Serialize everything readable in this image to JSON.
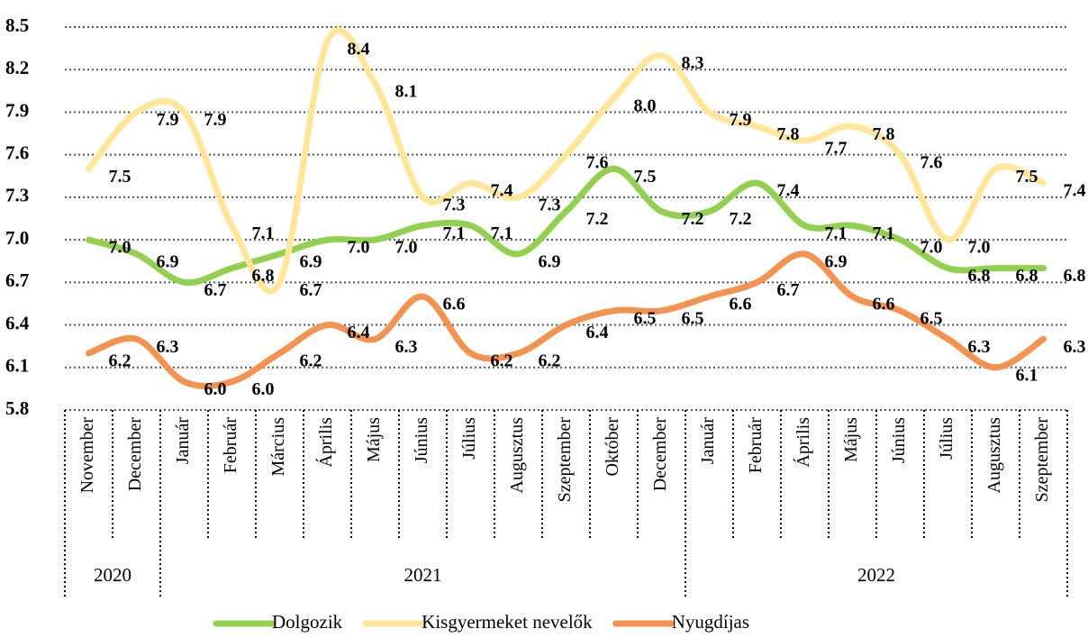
{
  "chart_data": {
    "type": "line",
    "categories": [
      "November",
      "December",
      "Január",
      "Február",
      "Március",
      "Április",
      "Május",
      "Június",
      "Július",
      "Augusztus",
      "Szeptember",
      "Október",
      "December",
      "Január",
      "Február",
      "Április",
      "Május",
      "Június",
      "Július",
      "Augusztus",
      "Szeptember"
    ],
    "groups": [
      {
        "label": "2020",
        "span": 2
      },
      {
        "label": "2021",
        "span": 11
      },
      {
        "label": "2022",
        "span": 8
      }
    ],
    "ylim": [
      5.8,
      8.5
    ],
    "yticks": [
      5.8,
      6.1,
      6.4,
      6.7,
      {
        "value": 7,
        "label": "7.0"
      },
      7.3,
      7.6,
      7.9,
      8.2,
      8.5
    ],
    "grid": true,
    "smooth": true,
    "legend": "bottom",
    "series": [
      {
        "name": "Dolgozik",
        "color": "#92d050",
        "values": [
          7,
          6.9,
          6.7,
          6.8,
          6.9,
          7,
          7,
          7.1,
          7.1,
          6.9,
          7.2,
          7.5,
          7.2,
          7.2,
          7.4,
          7.1,
          7.1,
          7,
          6.8,
          6.8,
          6.8
        ],
        "value_labels": [
          "7.0",
          "6.9",
          "6.7",
          "6.8",
          "6.9",
          "7.0",
          "7.0",
          "7.1",
          "7.1",
          "6.9",
          "7.2",
          "7.5",
          "7.2",
          "7.2",
          "7.4",
          "7.1",
          "7.1",
          "7.0",
          "6.8",
          "6.8",
          "6.8"
        ]
      },
      {
        "name": "Kisgyermeket nevelők",
        "color": "#ffe699",
        "values": [
          7.5,
          7.9,
          7.9,
          7.1,
          6.7,
          8.4,
          8.1,
          7.3,
          7.4,
          7.3,
          7.6,
          8,
          8.3,
          7.9,
          7.8,
          7.7,
          7.8,
          7.6,
          7,
          7.5,
          7.4
        ],
        "value_labels": [
          "7.5",
          "7.9",
          "7.9",
          "7.1",
          "6.7",
          "8.4",
          "8.1",
          "7.3",
          "7.4",
          "7.3",
          "7.6",
          "8.0",
          "8.3",
          "7.9",
          "7.8",
          "7.7",
          "7.8",
          "7.6",
          "7.0",
          "7.5",
          "7.4"
        ]
      },
      {
        "name": "Nyugdíjas",
        "color": "#f4924f",
        "values": [
          6.2,
          6.3,
          6,
          6,
          6.2,
          6.4,
          6.3,
          6.6,
          6.2,
          6.2,
          6.4,
          6.5,
          6.5,
          6.6,
          6.7,
          6.9,
          6.6,
          6.5,
          6.3,
          6.1,
          6.3
        ],
        "value_labels": [
          "6.2",
          "6.3",
          "6.0",
          "6.0",
          "6.2",
          "6.4",
          "6.3",
          "6.6",
          "6.2",
          "6.2",
          "6.4",
          "6.5",
          "6.5",
          "6.6",
          "6.7",
          "6.9",
          "6.6",
          "6.5",
          "6.3",
          "6.1",
          "6.3"
        ]
      }
    ]
  }
}
